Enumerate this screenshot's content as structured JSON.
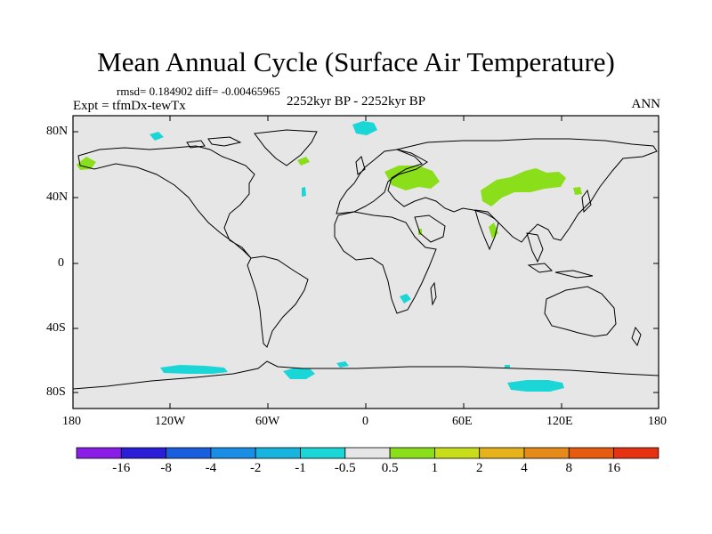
{
  "title": "Mean Annual Cycle (Surface Air Temperature)",
  "stats": "rmsd= 0.184902 diff= -0.00465965",
  "period": "2252kyr BP - 2252kyr BP",
  "experiment": "Expt = tfmDx-tewTx",
  "season": "ANN",
  "lat_ticks": [
    "80N",
    "40N",
    "0",
    "40S",
    "80S"
  ],
  "lon_ticks": [
    "180",
    "120W",
    "60W",
    "0",
    "60E",
    "120E",
    "180"
  ],
  "colorbar": {
    "labels": [
      "-16",
      "-8",
      "-4",
      "-2",
      "-1",
      "-0.5",
      "0.5",
      "1",
      "2",
      "4",
      "8",
      "16"
    ],
    "colors": [
      "#8a1ee8",
      "#2a1ed8",
      "#1a5ee0",
      "#1a8ee6",
      "#18b4e0",
      "#1ad6d6",
      "#e6e6e6",
      "#8ade1a",
      "#c8de1a",
      "#e6b41a",
      "#e68a1a",
      "#e65a12",
      "#e63212"
    ]
  },
  "colors": {
    "background": "#e6e6e6",
    "positive": "#8ade1a",
    "negative": "#1ad6d6",
    "coast": "#000000"
  }
}
